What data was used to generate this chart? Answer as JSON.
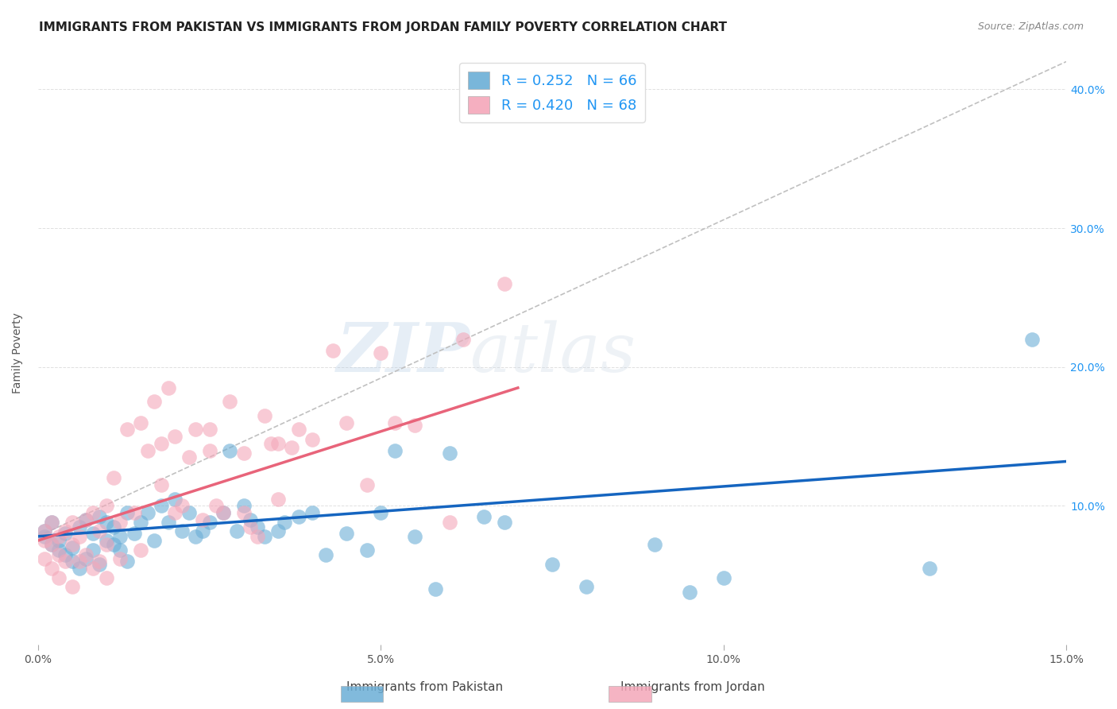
{
  "title": "IMMIGRANTS FROM PAKISTAN VS IMMIGRANTS FROM JORDAN FAMILY POVERTY CORRELATION CHART",
  "source": "Source: ZipAtlas.com",
  "ylabel": "Family Poverty",
  "xlim": [
    0.0,
    0.15
  ],
  "ylim": [
    0.0,
    0.42
  ],
  "xticks": [
    0.0,
    0.05,
    0.1,
    0.15
  ],
  "xtick_labels": [
    "0.0%",
    "5.0%",
    "10.0%",
    "15.0%"
  ],
  "ytick_labels_right": [
    "10.0%",
    "20.0%",
    "30.0%",
    "40.0%"
  ],
  "yticks_right": [
    0.1,
    0.2,
    0.3,
    0.4
  ],
  "pakistan_color": "#6baed6",
  "jordan_color": "#f4a7b9",
  "pakistan_line_color": "#1565c0",
  "jordan_line_color": "#e8647a",
  "pakistan_R": 0.252,
  "pakistan_N": 66,
  "jordan_R": 0.42,
  "jordan_N": 68,
  "legend_label_pakistan": "Immigrants from Pakistan",
  "legend_label_jordan": "Immigrants from Jordan",
  "watermark_zip": "ZIP",
  "watermark_atlas": "atlas",
  "title_fontsize": 11,
  "axis_label_fontsize": 10,
  "tick_fontsize": 10,
  "pakistan_scatter_x": [
    0.001,
    0.001,
    0.002,
    0.002,
    0.003,
    0.003,
    0.004,
    0.004,
    0.005,
    0.005,
    0.006,
    0.006,
    0.007,
    0.007,
    0.008,
    0.008,
    0.009,
    0.009,
    0.01,
    0.01,
    0.011,
    0.011,
    0.012,
    0.012,
    0.013,
    0.013,
    0.014,
    0.015,
    0.016,
    0.017,
    0.018,
    0.019,
    0.02,
    0.021,
    0.022,
    0.023,
    0.024,
    0.025,
    0.027,
    0.028,
    0.029,
    0.03,
    0.031,
    0.032,
    0.033,
    0.035,
    0.036,
    0.038,
    0.04,
    0.042,
    0.045,
    0.048,
    0.05,
    0.052,
    0.055,
    0.058,
    0.06,
    0.065,
    0.068,
    0.075,
    0.08,
    0.09,
    0.095,
    0.1,
    0.13,
    0.145
  ],
  "pakistan_scatter_y": [
    0.082,
    0.078,
    0.088,
    0.072,
    0.068,
    0.075,
    0.08,
    0.065,
    0.07,
    0.06,
    0.085,
    0.055,
    0.09,
    0.062,
    0.068,
    0.08,
    0.058,
    0.092,
    0.075,
    0.088,
    0.085,
    0.072,
    0.078,
    0.068,
    0.095,
    0.06,
    0.08,
    0.088,
    0.095,
    0.075,
    0.1,
    0.088,
    0.105,
    0.082,
    0.095,
    0.078,
    0.082,
    0.088,
    0.095,
    0.14,
    0.082,
    0.1,
    0.09,
    0.085,
    0.078,
    0.082,
    0.088,
    0.092,
    0.095,
    0.065,
    0.08,
    0.068,
    0.095,
    0.14,
    0.078,
    0.04,
    0.138,
    0.092,
    0.088,
    0.058,
    0.042,
    0.072,
    0.038,
    0.048,
    0.055,
    0.22
  ],
  "jordan_scatter_x": [
    0.001,
    0.001,
    0.001,
    0.002,
    0.002,
    0.002,
    0.003,
    0.003,
    0.003,
    0.004,
    0.004,
    0.005,
    0.005,
    0.005,
    0.006,
    0.006,
    0.007,
    0.007,
    0.008,
    0.008,
    0.009,
    0.009,
    0.01,
    0.01,
    0.011,
    0.012,
    0.013,
    0.014,
    0.015,
    0.016,
    0.017,
    0.018,
    0.019,
    0.02,
    0.021,
    0.022,
    0.023,
    0.024,
    0.025,
    0.026,
    0.027,
    0.028,
    0.03,
    0.031,
    0.032,
    0.033,
    0.034,
    0.035,
    0.037,
    0.038,
    0.04,
    0.043,
    0.045,
    0.048,
    0.05,
    0.052,
    0.055,
    0.06,
    0.062,
    0.068,
    0.01,
    0.012,
    0.015,
    0.018,
    0.02,
    0.025,
    0.03,
    0.035
  ],
  "jordan_scatter_y": [
    0.082,
    0.075,
    0.062,
    0.088,
    0.072,
    0.055,
    0.078,
    0.065,
    0.048,
    0.082,
    0.06,
    0.088,
    0.072,
    0.042,
    0.078,
    0.06,
    0.09,
    0.065,
    0.095,
    0.055,
    0.082,
    0.06,
    0.1,
    0.072,
    0.12,
    0.088,
    0.155,
    0.095,
    0.16,
    0.14,
    0.175,
    0.145,
    0.185,
    0.15,
    0.1,
    0.135,
    0.155,
    0.09,
    0.14,
    0.1,
    0.095,
    0.175,
    0.095,
    0.085,
    0.078,
    0.165,
    0.145,
    0.105,
    0.142,
    0.155,
    0.148,
    0.212,
    0.16,
    0.115,
    0.21,
    0.16,
    0.158,
    0.088,
    0.22,
    0.26,
    0.048,
    0.062,
    0.068,
    0.115,
    0.095,
    0.155,
    0.138,
    0.145
  ],
  "pak_line_x0": 0.0,
  "pak_line_y0": 0.078,
  "pak_line_x1": 0.15,
  "pak_line_y1": 0.132,
  "jor_line_x0": 0.0,
  "jor_line_y0": 0.075,
  "jor_line_x1": 0.07,
  "jor_line_y1": 0.185,
  "dash_line_x0": 0.0,
  "dash_line_y0": 0.078,
  "dash_line_x1": 0.15,
  "dash_line_y1": 0.42
}
